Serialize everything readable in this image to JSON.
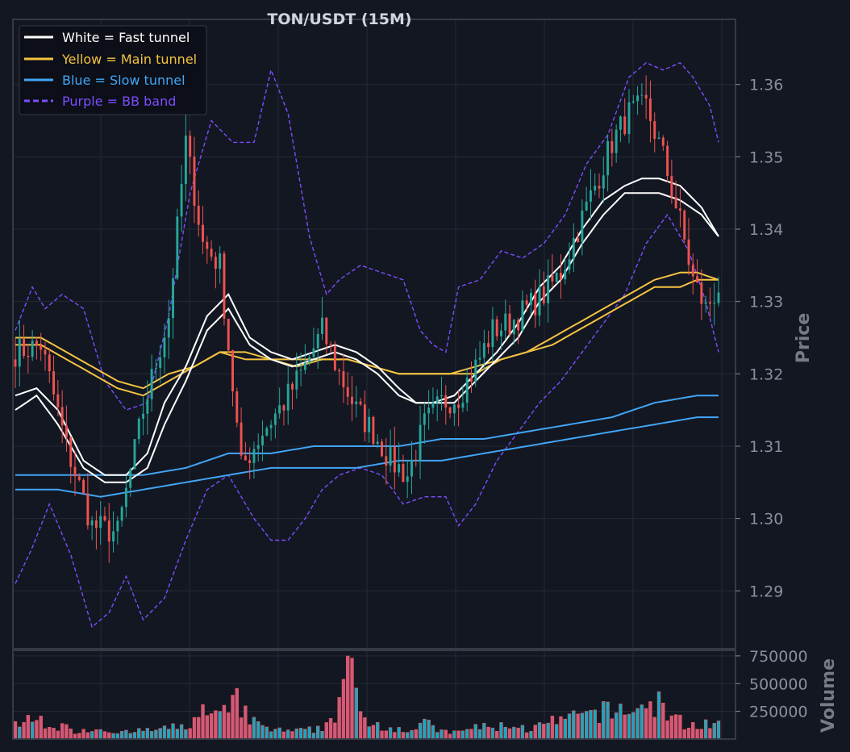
{
  "chart_data": {
    "type": "candlestick",
    "title": "TON/USDT (15M)",
    "price_axis": {
      "label": "Price",
      "ylim": [
        1.282,
        1.369
      ],
      "ticks": [
        "1.29",
        "1.30",
        "1.31",
        "1.32",
        "1.33",
        "1.34",
        "1.35",
        "1.36"
      ]
    },
    "volume_axis": {
      "label": "Volume",
      "ylim": [
        0,
        800000
      ],
      "ticks": [
        "250000",
        "500000",
        "750000"
      ]
    },
    "grid": true,
    "legend": {
      "position": "top-left",
      "entries": [
        {
          "label": "White = Fast tunnel",
          "color": "#ffffff",
          "style": "solid"
        },
        {
          "label": "Yellow = Main tunnel",
          "color": "#f5c342",
          "style": "solid"
        },
        {
          "label": "Blue = Slow tunnel",
          "color": "#42a5f5",
          "style": "solid"
        },
        {
          "label": "Purple = BB band",
          "color": "#7c4dff",
          "style": "dashed"
        }
      ]
    },
    "colors": {
      "up": "#26a69a",
      "down": "#ef5350",
      "background": "#131722",
      "grid": "#262a35"
    },
    "anchors": {
      "close": [
        [
          0,
          1.323
        ],
        [
          6,
          1.324
        ],
        [
          12,
          1.31
        ],
        [
          18,
          1.299
        ],
        [
          24,
          1.298
        ],
        [
          30,
          1.315
        ],
        [
          36,
          1.328
        ],
        [
          40,
          1.352
        ],
        [
          44,
          1.338
        ],
        [
          48,
          1.335
        ],
        [
          53,
          1.307
        ],
        [
          58,
          1.312
        ],
        [
          63,
          1.316
        ],
        [
          68,
          1.321
        ],
        [
          72,
          1.326
        ],
        [
          76,
          1.32
        ],
        [
          80,
          1.315
        ],
        [
          84,
          1.312
        ],
        [
          88,
          1.308
        ],
        [
          92,
          1.306
        ],
        [
          96,
          1.313
        ],
        [
          100,
          1.316
        ],
        [
          104,
          1.317
        ],
        [
          108,
          1.321
        ],
        [
          112,
          1.326
        ],
        [
          116,
          1.327
        ],
        [
          120,
          1.329
        ],
        [
          124,
          1.331
        ],
        [
          128,
          1.334
        ],
        [
          132,
          1.34
        ],
        [
          136,
          1.346
        ],
        [
          140,
          1.352
        ],
        [
          144,
          1.356
        ],
        [
          148,
          1.357
        ],
        [
          152,
          1.35
        ],
        [
          156,
          1.341
        ],
        [
          159,
          1.333
        ],
        [
          162,
          1.329
        ],
        [
          165,
          1.332
        ]
      ],
      "fast_upper": [
        [
          0,
          1.317
        ],
        [
          5,
          1.318
        ],
        [
          10,
          1.315
        ],
        [
          16,
          1.308
        ],
        [
          21,
          1.306
        ],
        [
          26,
          1.306
        ],
        [
          31,
          1.309
        ],
        [
          35,
          1.316
        ],
        [
          40,
          1.321
        ],
        [
          45,
          1.328
        ],
        [
          50,
          1.331
        ],
        [
          55,
          1.325
        ],
        [
          60,
          1.323
        ],
        [
          65,
          1.322
        ],
        [
          70,
          1.323
        ],
        [
          75,
          1.324
        ],
        [
          80,
          1.323
        ],
        [
          85,
          1.321
        ],
        [
          90,
          1.318
        ],
        [
          94,
          1.316
        ],
        [
          98,
          1.316
        ],
        [
          103,
          1.317
        ],
        [
          108,
          1.32
        ],
        [
          113,
          1.323
        ],
        [
          118,
          1.327
        ],
        [
          123,
          1.332
        ],
        [
          128,
          1.335
        ],
        [
          133,
          1.34
        ],
        [
          138,
          1.344
        ],
        [
          143,
          1.346
        ],
        [
          147,
          1.347
        ],
        [
          151,
          1.347
        ],
        [
          156,
          1.346
        ],
        [
          161,
          1.343
        ],
        [
          165,
          1.339
        ]
      ],
      "fast_lower": [
        [
          0,
          1.315
        ],
        [
          5,
          1.317
        ],
        [
          10,
          1.313
        ],
        [
          16,
          1.307
        ],
        [
          21,
          1.305
        ],
        [
          26,
          1.305
        ],
        [
          31,
          1.307
        ],
        [
          35,
          1.313
        ],
        [
          40,
          1.319
        ],
        [
          45,
          1.326
        ],
        [
          50,
          1.329
        ],
        [
          55,
          1.324
        ],
        [
          60,
          1.322
        ],
        [
          65,
          1.321
        ],
        [
          70,
          1.322
        ],
        [
          75,
          1.323
        ],
        [
          80,
          1.322
        ],
        [
          85,
          1.32
        ],
        [
          90,
          1.317
        ],
        [
          94,
          1.316
        ],
        [
          98,
          1.316
        ],
        [
          103,
          1.316
        ],
        [
          108,
          1.319
        ],
        [
          113,
          1.322
        ],
        [
          118,
          1.325
        ],
        [
          123,
          1.33
        ],
        [
          128,
          1.333
        ],
        [
          133,
          1.338
        ],
        [
          138,
          1.342
        ],
        [
          143,
          1.345
        ],
        [
          147,
          1.345
        ],
        [
          151,
          1.345
        ],
        [
          156,
          1.344
        ],
        [
          161,
          1.342
        ],
        [
          165,
          1.339
        ]
      ],
      "main_upper": [
        [
          0,
          1.325
        ],
        [
          6,
          1.325
        ],
        [
          12,
          1.323
        ],
        [
          18,
          1.321
        ],
        [
          24,
          1.319
        ],
        [
          30,
          1.318
        ],
        [
          36,
          1.32
        ],
        [
          42,
          1.321
        ],
        [
          48,
          1.323
        ],
        [
          54,
          1.323
        ],
        [
          60,
          1.322
        ],
        [
          66,
          1.322
        ],
        [
          72,
          1.322
        ],
        [
          78,
          1.322
        ],
        [
          84,
          1.321
        ],
        [
          90,
          1.32
        ],
        [
          96,
          1.32
        ],
        [
          102,
          1.32
        ],
        [
          108,
          1.321
        ],
        [
          114,
          1.322
        ],
        [
          120,
          1.323
        ],
        [
          126,
          1.325
        ],
        [
          132,
          1.327
        ],
        [
          138,
          1.329
        ],
        [
          144,
          1.331
        ],
        [
          150,
          1.333
        ],
        [
          156,
          1.334
        ],
        [
          160,
          1.334
        ],
        [
          165,
          1.333
        ]
      ],
      "main_lower": [
        [
          0,
          1.324
        ],
        [
          6,
          1.324
        ],
        [
          12,
          1.322
        ],
        [
          18,
          1.32
        ],
        [
          24,
          1.318
        ],
        [
          30,
          1.317
        ],
        [
          36,
          1.319
        ],
        [
          42,
          1.321
        ],
        [
          48,
          1.323
        ],
        [
          54,
          1.322
        ],
        [
          60,
          1.322
        ],
        [
          66,
          1.321
        ],
        [
          72,
          1.322
        ],
        [
          78,
          1.322
        ],
        [
          84,
          1.321
        ],
        [
          90,
          1.32
        ],
        [
          96,
          1.32
        ],
        [
          102,
          1.32
        ],
        [
          108,
          1.32
        ],
        [
          114,
          1.322
        ],
        [
          120,
          1.323
        ],
        [
          126,
          1.324
        ],
        [
          132,
          1.326
        ],
        [
          138,
          1.328
        ],
        [
          144,
          1.33
        ],
        [
          150,
          1.332
        ],
        [
          156,
          1.332
        ],
        [
          160,
          1.333
        ],
        [
          165,
          1.333
        ]
      ],
      "slow_upper": [
        [
          0,
          1.306
        ],
        [
          10,
          1.306
        ],
        [
          20,
          1.306
        ],
        [
          30,
          1.306
        ],
        [
          40,
          1.307
        ],
        [
          50,
          1.309
        ],
        [
          60,
          1.309
        ],
        [
          70,
          1.31
        ],
        [
          80,
          1.31
        ],
        [
          90,
          1.31
        ],
        [
          100,
          1.311
        ],
        [
          110,
          1.311
        ],
        [
          120,
          1.312
        ],
        [
          130,
          1.313
        ],
        [
          140,
          1.314
        ],
        [
          150,
          1.316
        ],
        [
          160,
          1.317
        ],
        [
          165,
          1.317
        ]
      ],
      "slow_lower": [
        [
          0,
          1.304
        ],
        [
          10,
          1.304
        ],
        [
          20,
          1.303
        ],
        [
          30,
          1.304
        ],
        [
          40,
          1.305
        ],
        [
          50,
          1.306
        ],
        [
          60,
          1.307
        ],
        [
          70,
          1.307
        ],
        [
          80,
          1.307
        ],
        [
          90,
          1.308
        ],
        [
          100,
          1.308
        ],
        [
          110,
          1.309
        ],
        [
          120,
          1.31
        ],
        [
          130,
          1.311
        ],
        [
          140,
          1.312
        ],
        [
          150,
          1.313
        ],
        [
          160,
          1.314
        ],
        [
          165,
          1.314
        ]
      ],
      "bb_upper": [
        [
          0,
          1.326
        ],
        [
          4,
          1.332
        ],
        [
          7,
          1.329
        ],
        [
          11,
          1.331
        ],
        [
          16,
          1.329
        ],
        [
          21,
          1.319
        ],
        [
          26,
          1.315
        ],
        [
          31,
          1.316
        ],
        [
          36,
          1.328
        ],
        [
          41,
          1.345
        ],
        [
          46,
          1.355
        ],
        [
          51,
          1.352
        ],
        [
          56,
          1.352
        ],
        [
          60,
          1.362
        ],
        [
          64,
          1.356
        ],
        [
          69,
          1.339
        ],
        [
          73,
          1.331
        ],
        [
          76,
          1.333
        ],
        [
          81,
          1.335
        ],
        [
          86,
          1.334
        ],
        [
          91,
          1.333
        ],
        [
          95,
          1.326
        ],
        [
          98,
          1.324
        ],
        [
          101,
          1.323
        ],
        [
          104,
          1.332
        ],
        [
          109,
          1.333
        ],
        [
          114,
          1.337
        ],
        [
          119,
          1.336
        ],
        [
          124,
          1.338
        ],
        [
          129,
          1.342
        ],
        [
          134,
          1.349
        ],
        [
          139,
          1.353
        ],
        [
          144,
          1.361
        ],
        [
          148,
          1.363
        ],
        [
          152,
          1.362
        ],
        [
          156,
          1.363
        ],
        [
          159,
          1.361
        ],
        [
          163,
          1.357
        ],
        [
          165,
          1.352
        ]
      ],
      "bb_lower": [
        [
          0,
          1.291
        ],
        [
          4,
          1.296
        ],
        [
          8,
          1.302
        ],
        [
          13,
          1.295
        ],
        [
          18,
          1.285
        ],
        [
          22,
          1.287
        ],
        [
          26,
          1.292
        ],
        [
          30,
          1.286
        ],
        [
          35,
          1.289
        ],
        [
          40,
          1.297
        ],
        [
          45,
          1.304
        ],
        [
          50,
          1.306
        ],
        [
          56,
          1.3
        ],
        [
          60,
          1.297
        ],
        [
          64,
          1.297
        ],
        [
          68,
          1.3
        ],
        [
          72,
          1.304
        ],
        [
          76,
          1.306
        ],
        [
          81,
          1.307
        ],
        [
          86,
          1.306
        ],
        [
          91,
          1.302
        ],
        [
          96,
          1.303
        ],
        [
          101,
          1.303
        ],
        [
          104,
          1.299
        ],
        [
          108,
          1.302
        ],
        [
          113,
          1.308
        ],
        [
          118,
          1.312
        ],
        [
          123,
          1.316
        ],
        [
          128,
          1.319
        ],
        [
          133,
          1.323
        ],
        [
          138,
          1.327
        ],
        [
          143,
          1.331
        ],
        [
          148,
          1.338
        ],
        [
          153,
          1.342
        ],
        [
          158,
          1.337
        ],
        [
          162,
          1.33
        ],
        [
          165,
          1.323
        ]
      ],
      "volume": [
        [
          0,
          150000
        ],
        [
          6,
          180000
        ],
        [
          10,
          120000
        ],
        [
          14,
          80000
        ],
        [
          20,
          100000
        ],
        [
          26,
          60000
        ],
        [
          30,
          80000
        ],
        [
          34,
          90000
        ],
        [
          40,
          120000
        ],
        [
          44,
          250000
        ],
        [
          48,
          200000
        ],
        [
          52,
          350000
        ],
        [
          56,
          150000
        ],
        [
          60,
          90000
        ],
        [
          64,
          70000
        ],
        [
          68,
          80000
        ],
        [
          72,
          100000
        ],
        [
          75,
          250000
        ],
        [
          78,
          720000
        ],
        [
          81,
          220000
        ],
        [
          84,
          150000
        ],
        [
          88,
          120000
        ],
        [
          92,
          80000
        ],
        [
          96,
          150000
        ],
        [
          100,
          70000
        ],
        [
          104,
          60000
        ],
        [
          108,
          120000
        ],
        [
          112,
          100000
        ],
        [
          116,
          140000
        ],
        [
          120,
          90000
        ],
        [
          124,
          130000
        ],
        [
          128,
          180000
        ],
        [
          132,
          200000
        ],
        [
          136,
          250000
        ],
        [
          140,
          260000
        ],
        [
          144,
          280000
        ],
        [
          148,
          300000
        ],
        [
          151,
          350000
        ],
        [
          154,
          200000
        ],
        [
          158,
          130000
        ],
        [
          162,
          150000
        ],
        [
          165,
          130000
        ]
      ]
    }
  }
}
